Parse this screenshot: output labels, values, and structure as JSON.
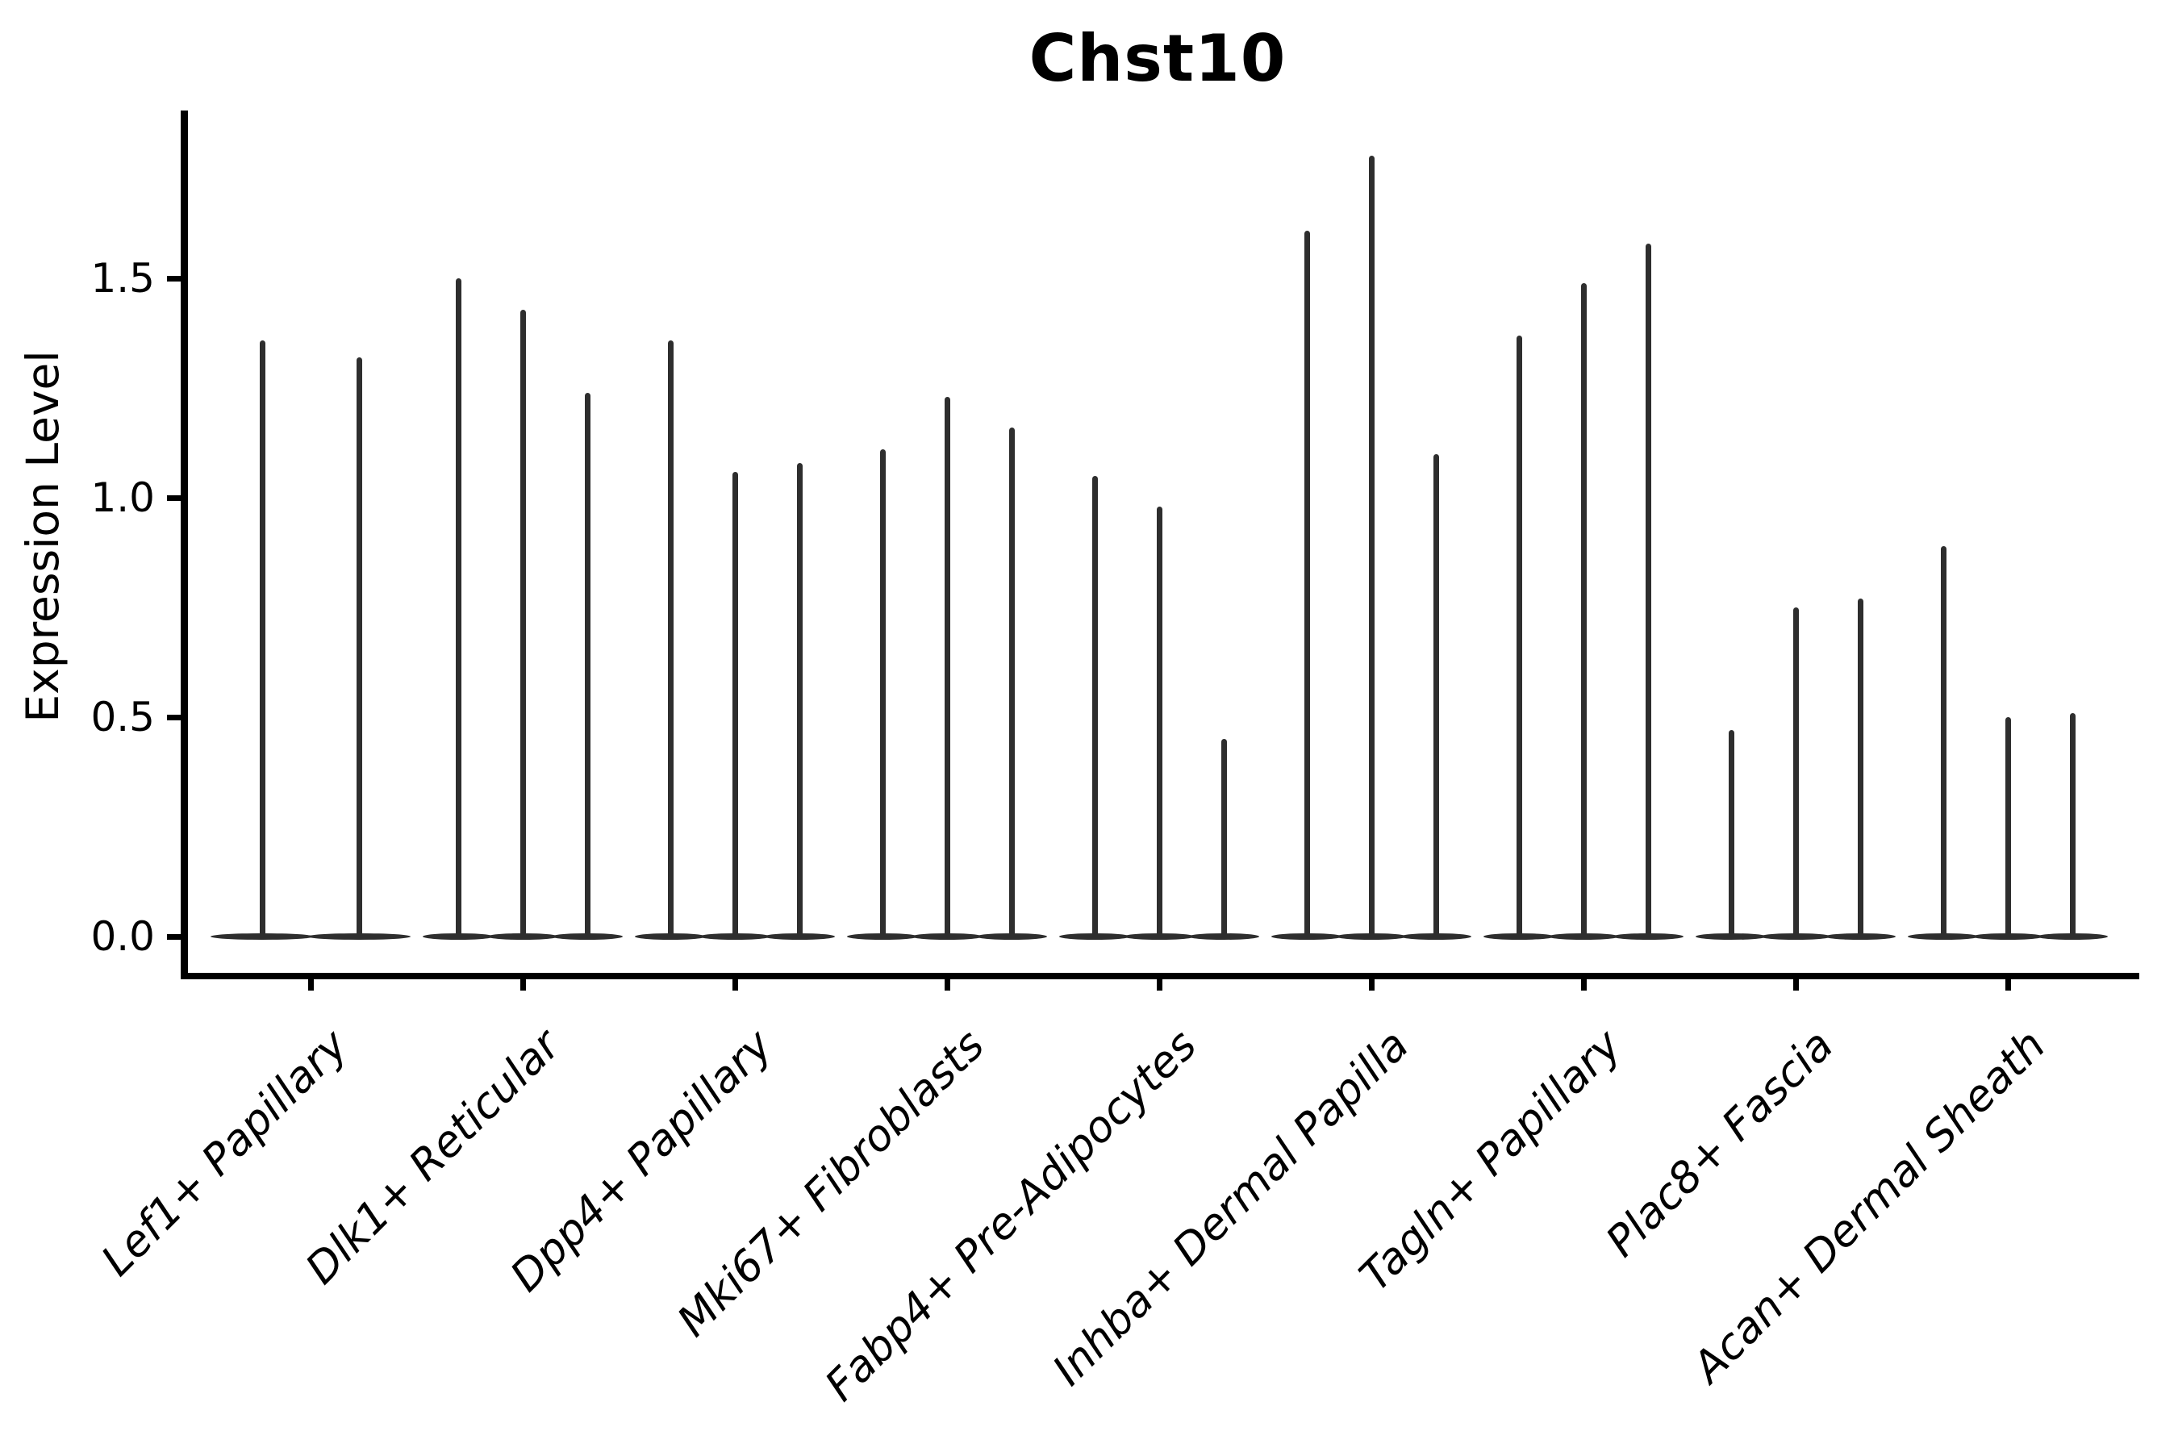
{
  "title": "Chst10",
  "y_axis": {
    "label": "Expression Level",
    "tick_labels": [
      "0.0",
      "0.5",
      "1.0",
      "1.5"
    ],
    "tick_values": [
      0.0,
      0.5,
      1.0,
      1.5
    ]
  },
  "colors": {
    "violin": "#2e2e2e",
    "axis": "#000000",
    "text": "#000000",
    "background": "#ffffff"
  },
  "chart_data": {
    "type": "violin",
    "title": "Chst10",
    "xlabel": "",
    "ylabel": "Expression Level",
    "ylim": [
      -0.09,
      1.88
    ],
    "yticks": [
      0.0,
      0.5,
      1.0,
      1.5
    ],
    "grid": false,
    "legend_position": "none",
    "style_note": "Seurat-style single-gene violin plot; each cell type has 2-3 dodged violins (sub-samples). Expression mass is concentrated at 0 (flat wide base) with a thin spike up to the max expression value.",
    "categories": [
      "Lef1+ Papillary",
      "Dlk1+ Reticular",
      "Dpp4+ Papillary",
      "Mki67+ Fibroblasts",
      "Fabp4+ Pre-Adipocytes",
      "Inhba+ Dermal Papilla",
      "Tagln+ Papillary",
      "Plac8+ Fascia",
      "Acan+ Dermal Sheath"
    ],
    "groups": [
      {
        "category": "Lef1+ Papillary",
        "violin_baseline": 0.0,
        "violin_max_values": [
          1.36,
          1.32
        ]
      },
      {
        "category": "Dlk1+ Reticular",
        "violin_baseline": 0.0,
        "violin_max_values": [
          1.5,
          1.43,
          1.24
        ]
      },
      {
        "category": "Dpp4+ Papillary",
        "violin_baseline": 0.0,
        "violin_max_values": [
          1.36,
          1.06,
          1.08
        ]
      },
      {
        "category": "Mki67+ Fibroblasts",
        "violin_baseline": 0.0,
        "violin_max_values": [
          1.11,
          1.23,
          1.16
        ]
      },
      {
        "category": "Fabp4+ Pre-Adipocytes",
        "violin_baseline": 0.0,
        "violin_max_values": [
          1.05,
          0.98,
          0.45
        ]
      },
      {
        "category": "Inhba+ Dermal Papilla",
        "violin_baseline": 0.0,
        "violin_max_values": [
          1.61,
          1.78,
          1.1
        ]
      },
      {
        "category": "Tagln+ Papillary",
        "violin_baseline": 0.0,
        "violin_max_values": [
          1.37,
          1.49,
          1.58
        ]
      },
      {
        "category": "Plac8+ Fascia",
        "violin_baseline": 0.0,
        "violin_max_values": [
          0.47,
          0.75,
          0.77
        ]
      },
      {
        "category": "Acan+ Dermal Sheath",
        "violin_baseline": 0.0,
        "violin_max_values": [
          0.89,
          0.5,
          0.51
        ]
      }
    ]
  }
}
